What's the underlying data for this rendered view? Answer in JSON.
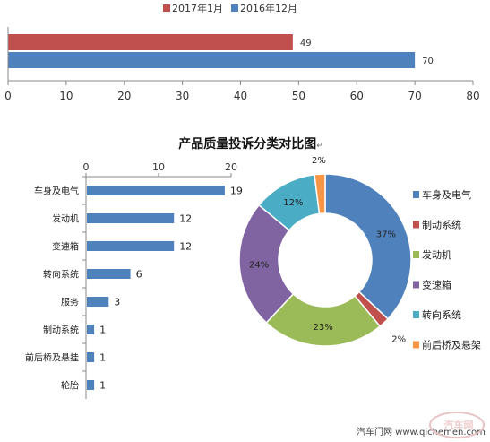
{
  "chart_data": [
    {
      "type": "bar",
      "orientation": "horizontal",
      "title": "",
      "categories": [
        ""
      ],
      "series": [
        {
          "name": "2017年1月",
          "color": "#c0504d",
          "values": [
            49
          ]
        },
        {
          "name": "2016年12月",
          "color": "#4f81bd",
          "values": [
            70
          ]
        }
      ],
      "xlim": [
        0,
        80
      ],
      "xticks": [
        0,
        10,
        20,
        30,
        40,
        50,
        60,
        70,
        80
      ],
      "legend": "top",
      "grid": false
    },
    {
      "type": "bar",
      "orientation": "horizontal",
      "title": "产品质量投诉分类对比图",
      "title_mark": "↵",
      "categories": [
        "车身及电气",
        "发动机",
        "变速箱",
        "转向系统",
        "服务",
        "制动系统",
        "前后桥及悬挂",
        "轮胎"
      ],
      "values": [
        19,
        12,
        12,
        6,
        3,
        1,
        1,
        1
      ],
      "xlim": [
        0,
        20
      ],
      "xticks": [
        0,
        10,
        20
      ],
      "color": "#4f81bd",
      "grid": false
    },
    {
      "type": "pie",
      "donut": true,
      "labels": [
        "车身及电气",
        "制动系统",
        "发动机",
        "变速箱",
        "转向系统",
        "前后桥及悬架"
      ],
      "values": [
        37,
        2,
        23,
        24,
        12,
        2
      ],
      "value_labels": [
        "37%",
        "2%",
        "23%",
        "24%",
        "12%",
        "2%"
      ],
      "colors": [
        "#4f81bd",
        "#c0504d",
        "#9bbb59",
        "#8064a2",
        "#4bacc6",
        "#f79646"
      ],
      "legend": "right"
    }
  ],
  "watermark": {
    "text": "汽车门网 www.qichemen.com",
    "logo_text": "汽车网"
  }
}
